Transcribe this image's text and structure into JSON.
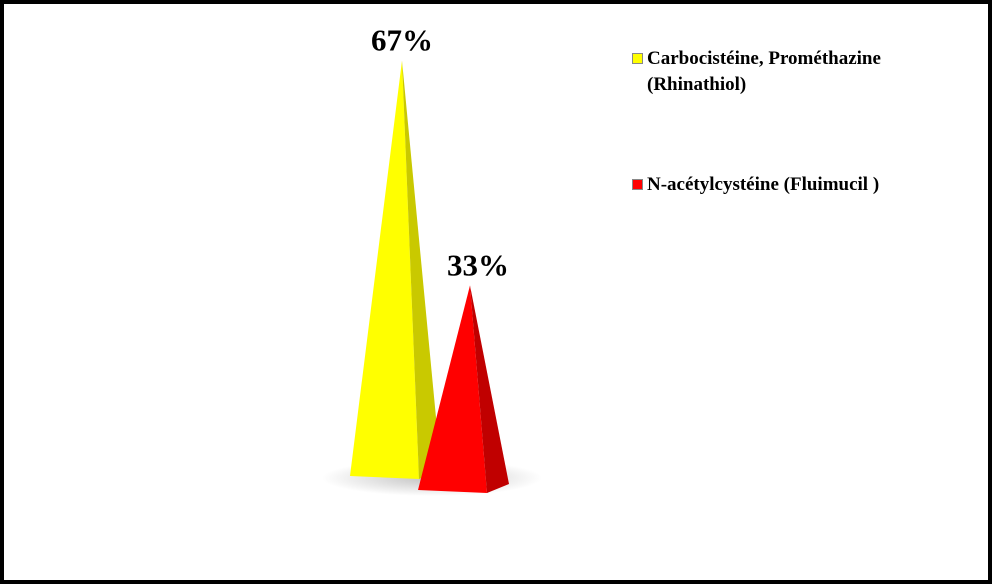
{
  "chart_data": {
    "type": "pyramid",
    "categories": [
      "Carbocistéine, Prométhazine (Rhinathiol)",
      "N-acétylcystéine (Fluimucil )"
    ],
    "values": [
      67,
      33
    ],
    "value_labels": [
      "67%",
      "33%"
    ],
    "colors": [
      "#ffff00",
      "#ff0000"
    ],
    "side_colors": [
      "#c9c900",
      "#c00000"
    ],
    "legend": "right"
  }
}
